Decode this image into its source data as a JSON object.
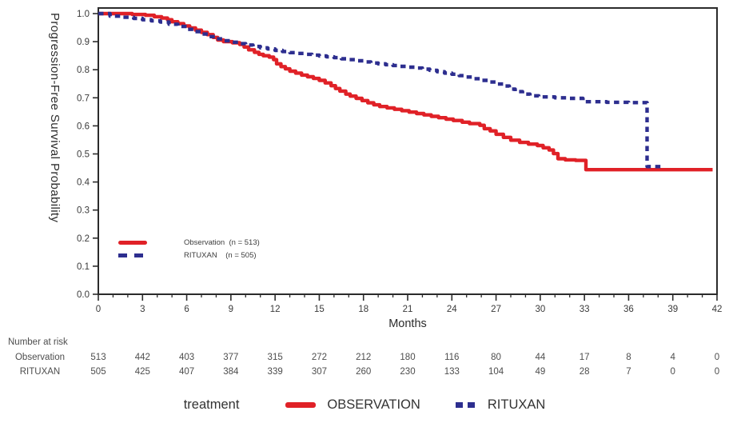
{
  "figure": {
    "y_axis_title": "Progression-Free Survival Probability",
    "x_axis_title": "Months"
  },
  "chart_data": {
    "type": "line",
    "subtype": "kaplan-meier-step",
    "title": "",
    "xlabel": "Months",
    "ylabel": "Progression-Free Survival Probability",
    "xlim": [
      0,
      42
    ],
    "ylim": [
      0.0,
      1.0
    ],
    "x_ticks": [
      0,
      3,
      6,
      9,
      12,
      15,
      18,
      21,
      24,
      27,
      30,
      33,
      36,
      39,
      42
    ],
    "x_major_step": 3,
    "x_minor_step": 1,
    "y_ticks": [
      "0.0",
      "0.1",
      "0.2",
      "0.3",
      "0.4",
      "0.5",
      "0.6",
      "0.7",
      "0.8",
      "0.9",
      "1.0"
    ],
    "grid": false,
    "frame_color": "#2b2b2b",
    "tick_text_color": "#3a3a3a",
    "legend_position": "inside-lower-left",
    "series": [
      {
        "name": "Observation",
        "legend_label": "Observation  (n = 513)",
        "color": "#e02127",
        "style": "solid",
        "points": [
          [
            0,
            1.0
          ],
          [
            2.1,
            1.0
          ],
          [
            2.3,
            0.997
          ],
          [
            3.2,
            0.994
          ],
          [
            3.8,
            0.989
          ],
          [
            4.3,
            0.984
          ],
          [
            4.7,
            0.978
          ],
          [
            5.0,
            0.971
          ],
          [
            5.4,
            0.964
          ],
          [
            5.8,
            0.956
          ],
          [
            6.2,
            0.949
          ],
          [
            6.6,
            0.941
          ],
          [
            7.0,
            0.933
          ],
          [
            7.4,
            0.925
          ],
          [
            7.8,
            0.915
          ],
          [
            8.1,
            0.906
          ],
          [
            8.5,
            0.9
          ],
          [
            9.1,
            0.896
          ],
          [
            9.6,
            0.89
          ],
          [
            9.9,
            0.881
          ],
          [
            10.2,
            0.871
          ],
          [
            10.6,
            0.862
          ],
          [
            10.9,
            0.855
          ],
          [
            11.2,
            0.85
          ],
          [
            11.6,
            0.845
          ],
          [
            11.9,
            0.836
          ],
          [
            12.1,
            0.821
          ],
          [
            12.4,
            0.811
          ],
          [
            12.7,
            0.803
          ],
          [
            13.0,
            0.795
          ],
          [
            13.4,
            0.788
          ],
          [
            13.8,
            0.781
          ],
          [
            14.2,
            0.775
          ],
          [
            14.6,
            0.769
          ],
          [
            15.0,
            0.762
          ],
          [
            15.4,
            0.753
          ],
          [
            15.8,
            0.743
          ],
          [
            16.1,
            0.733
          ],
          [
            16.4,
            0.724
          ],
          [
            16.8,
            0.713
          ],
          [
            17.1,
            0.706
          ],
          [
            17.5,
            0.698
          ],
          [
            17.9,
            0.69
          ],
          [
            18.3,
            0.682
          ],
          [
            18.7,
            0.675
          ],
          [
            19.1,
            0.669
          ],
          [
            19.6,
            0.664
          ],
          [
            20.1,
            0.659
          ],
          [
            20.6,
            0.654
          ],
          [
            21.1,
            0.649
          ],
          [
            21.6,
            0.644
          ],
          [
            22.1,
            0.639
          ],
          [
            22.6,
            0.634
          ],
          [
            23.1,
            0.629
          ],
          [
            23.6,
            0.624
          ],
          [
            24.1,
            0.619
          ],
          [
            24.7,
            0.613
          ],
          [
            25.2,
            0.608
          ],
          [
            25.9,
            0.602
          ],
          [
            26.2,
            0.59
          ],
          [
            26.6,
            0.582
          ],
          [
            27.0,
            0.57
          ],
          [
            27.5,
            0.559
          ],
          [
            28.0,
            0.549
          ],
          [
            28.6,
            0.541
          ],
          [
            29.2,
            0.535
          ],
          [
            29.8,
            0.53
          ],
          [
            30.2,
            0.522
          ],
          [
            30.6,
            0.514
          ],
          [
            30.9,
            0.501
          ],
          [
            31.2,
            0.483
          ],
          [
            31.7,
            0.479
          ],
          [
            32.4,
            0.477
          ],
          [
            33.1,
            0.444
          ],
          [
            41.7,
            0.444
          ]
        ]
      },
      {
        "name": "RITUXAN",
        "legend_label": "RITUXAN    (n = 505)",
        "color": "#2d2e8f",
        "style": "dashed",
        "points": [
          [
            0,
            1.0
          ],
          [
            0.8,
            0.991
          ],
          [
            1.6,
            0.987
          ],
          [
            2.4,
            0.983
          ],
          [
            3.0,
            0.978
          ],
          [
            3.6,
            0.974
          ],
          [
            4.2,
            0.97
          ],
          [
            4.8,
            0.962
          ],
          [
            5.4,
            0.954
          ],
          [
            6.0,
            0.944
          ],
          [
            6.5,
            0.936
          ],
          [
            7.0,
            0.927
          ],
          [
            7.5,
            0.918
          ],
          [
            8.0,
            0.91
          ],
          [
            8.5,
            0.903
          ],
          [
            9.0,
            0.898
          ],
          [
            9.5,
            0.893
          ],
          [
            10.0,
            0.888
          ],
          [
            10.5,
            0.883
          ],
          [
            11.0,
            0.878
          ],
          [
            11.5,
            0.874
          ],
          [
            12.0,
            0.869
          ],
          [
            12.5,
            0.865
          ],
          [
            13.0,
            0.861
          ],
          [
            13.5,
            0.858
          ],
          [
            14.0,
            0.855
          ],
          [
            14.5,
            0.852
          ],
          [
            15.0,
            0.849
          ],
          [
            15.5,
            0.846
          ],
          [
            16.0,
            0.843
          ],
          [
            16.5,
            0.839
          ],
          [
            17.0,
            0.836
          ],
          [
            17.5,
            0.832
          ],
          [
            18.0,
            0.828
          ],
          [
            18.5,
            0.824
          ],
          [
            19.0,
            0.821
          ],
          [
            19.5,
            0.818
          ],
          [
            20.0,
            0.815
          ],
          [
            20.5,
            0.812
          ],
          [
            21.0,
            0.809
          ],
          [
            21.5,
            0.806
          ],
          [
            22.0,
            0.802
          ],
          [
            22.5,
            0.798
          ],
          [
            23.0,
            0.793
          ],
          [
            23.5,
            0.788
          ],
          [
            24.0,
            0.784
          ],
          [
            24.5,
            0.779
          ],
          [
            25.0,
            0.774
          ],
          [
            25.5,
            0.768
          ],
          [
            26.0,
            0.762
          ],
          [
            26.5,
            0.756
          ],
          [
            27.0,
            0.749
          ],
          [
            27.5,
            0.742
          ],
          [
            27.9,
            0.731
          ],
          [
            28.3,
            0.722
          ],
          [
            28.8,
            0.713
          ],
          [
            29.3,
            0.707
          ],
          [
            29.9,
            0.703
          ],
          [
            31.0,
            0.7
          ],
          [
            32.0,
            0.698
          ],
          [
            32.9,
            0.686
          ],
          [
            34.5,
            0.684
          ],
          [
            36.0,
            0.683
          ],
          [
            37.2,
            0.683
          ],
          [
            37.25,
            0.455
          ],
          [
            38.3,
            0.455
          ]
        ]
      }
    ]
  },
  "inner_legend": {
    "items": [
      {
        "label": "Observation  (n = 513)",
        "color": "#e02127",
        "style": "solid"
      },
      {
        "label": "RITUXAN    (n = 505)",
        "color": "#2d2e8f",
        "style": "dashed"
      }
    ]
  },
  "risk_table": {
    "title": "Number at risk",
    "months": [
      0,
      3,
      6,
      9,
      12,
      15,
      18,
      21,
      24,
      27,
      30,
      33,
      36,
      39,
      42
    ],
    "rows": [
      {
        "label": "Observation",
        "values": [
          513,
          442,
          403,
          377,
          315,
          272,
          212,
          180,
          116,
          80,
          44,
          17,
          8,
          4,
          0
        ]
      },
      {
        "label": "RITUXAN",
        "values": [
          505,
          425,
          407,
          384,
          339,
          307,
          260,
          230,
          133,
          104,
          49,
          28,
          7,
          0,
          0
        ]
      }
    ]
  },
  "bottom_legend": {
    "title": "treatment",
    "items": [
      {
        "label": "OBSERVATION",
        "color": "#e02127",
        "style": "solid"
      },
      {
        "label": "RITUXAN",
        "color": "#2d2e8f",
        "style": "dashed"
      }
    ]
  }
}
